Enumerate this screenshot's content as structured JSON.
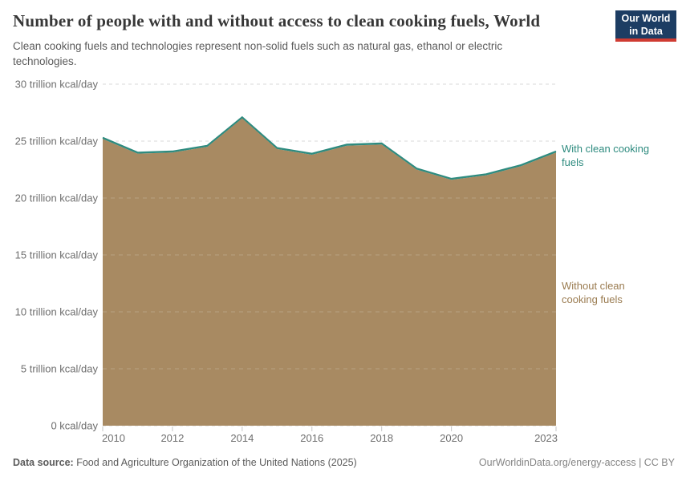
{
  "header": {
    "title": "Number of people with and without access to clean cooking fuels, World",
    "subtitle": "Clean cooking fuels and technologies represent non-solid fuels such as natural gas, ethanol or electric technologies.",
    "logo": {
      "line1": "Our World",
      "line2": "in Data",
      "bg_color": "#1D3D63",
      "accent_color": "#CF3B32"
    }
  },
  "chart_data": {
    "type": "area",
    "stacked": true,
    "title": "Number of people with and without access to clean cooking fuels, World",
    "x": [
      2010,
      2011,
      2012,
      2013,
      2014,
      2015,
      2016,
      2017,
      2018,
      2019,
      2020,
      2021,
      2022,
      2023
    ],
    "series": [
      {
        "name": "Without clean cooking fuels",
        "color": "#A88A62",
        "label_color": "#9A7B50",
        "values": [
          25.2,
          23.9,
          24.0,
          24.5,
          27.0,
          24.3,
          23.8,
          24.6,
          24.7,
          22.5,
          21.6,
          22.0,
          22.8,
          24.0
        ]
      },
      {
        "name": "With clean cooking fuels",
        "color": "#2E8B7F",
        "label_color": "#2E8B7F",
        "values": [
          0.1,
          0.1,
          0.1,
          0.1,
          0.1,
          0.1,
          0.1,
          0.1,
          0.1,
          0.1,
          0.1,
          0.1,
          0.1,
          0.1
        ],
        "note": "renders as a thin teal band along the top edge of the stack"
      }
    ],
    "ylim": [
      0,
      30
    ],
    "yticks": [
      {
        "value": 0,
        "label": "0 kcal/day"
      },
      {
        "value": 5,
        "label": "5 trillion kcal/day"
      },
      {
        "value": 10,
        "label": "10 trillion kcal/day"
      },
      {
        "value": 15,
        "label": "15 trillion kcal/day"
      },
      {
        "value": 20,
        "label": "20 trillion kcal/day"
      },
      {
        "value": 25,
        "label": "25 trillion kcal/day"
      },
      {
        "value": 30,
        "label": "30 trillion kcal/day"
      }
    ],
    "xticks": [
      2010,
      2012,
      2014,
      2016,
      2018,
      2020,
      2023
    ],
    "grid": "dashed-horizontal",
    "legend_position": "right-edge-labels"
  },
  "footer": {
    "source_prefix": "Data source:",
    "source_text": " Food and Agriculture Organization of the United Nations (2025)",
    "link": "OurWorldinData.org/energy-access | CC BY"
  }
}
